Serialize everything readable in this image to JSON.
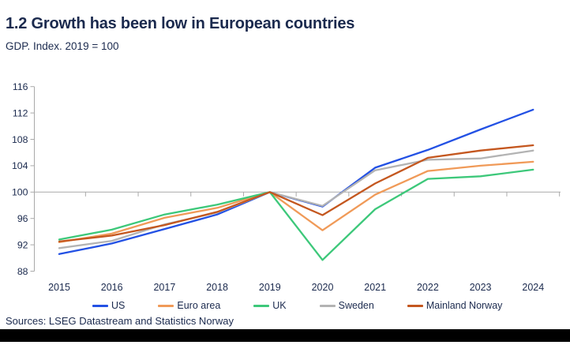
{
  "header": {
    "title": "1.2 Growth has been low in European countries",
    "subtitle": "GDP. Index. 2019 = 100"
  },
  "footer": {
    "sources": "Sources: LSEG Datastream and Statistics Norway"
  },
  "colors": {
    "text_navy": "#1b2a4e",
    "axis_gray": "#a9a9a9",
    "us_blue": "#2351e4",
    "euro_area_orange": "#f09a58",
    "uk_green": "#3dc87a",
    "sweden_gray": "#b3b3b3",
    "mainland_norway_rust": "#c4571f"
  },
  "chart_data": {
    "type": "line",
    "title": "1.2 Growth has been low in European countries",
    "subtitle": "GDP. Index. 2019 = 100",
    "x": [
      2015,
      2016,
      2017,
      2018,
      2019,
      2020,
      2021,
      2022,
      2023,
      2024
    ],
    "series": [
      {
        "name": "US",
        "color": "#2351e4",
        "values": [
          90.6,
          92.2,
          94.4,
          96.6,
          100,
          97.8,
          103.7,
          106.4,
          109.5,
          112.5
        ]
      },
      {
        "name": "Euro area",
        "color": "#f09a58",
        "values": [
          92.4,
          93.7,
          96.1,
          97.6,
          100,
          94.2,
          99.6,
          103.2,
          104.0,
          104.6
        ]
      },
      {
        "name": "UK",
        "color": "#3dc87a",
        "values": [
          92.8,
          94.3,
          96.6,
          98.1,
          100,
          89.7,
          97.4,
          102.0,
          102.4,
          103.4
        ]
      },
      {
        "name": "Sweden",
        "color": "#b3b3b3",
        "values": [
          91.5,
          92.6,
          95.1,
          96.9,
          100,
          97.9,
          103.3,
          104.9,
          105.1,
          106.3
        ]
      },
      {
        "name": "Mainland Norway",
        "color": "#c4571f",
        "values": [
          92.5,
          93.4,
          95.0,
          97.0,
          100,
          96.5,
          101.3,
          105.2,
          106.3,
          107.1
        ]
      }
    ],
    "y_ticks": [
      88,
      92,
      96,
      100,
      104,
      108,
      112,
      116
    ],
    "ylim": [
      88,
      116
    ],
    "baseline": 100,
    "grid": "baseline-only",
    "legend_position": "bottom"
  }
}
